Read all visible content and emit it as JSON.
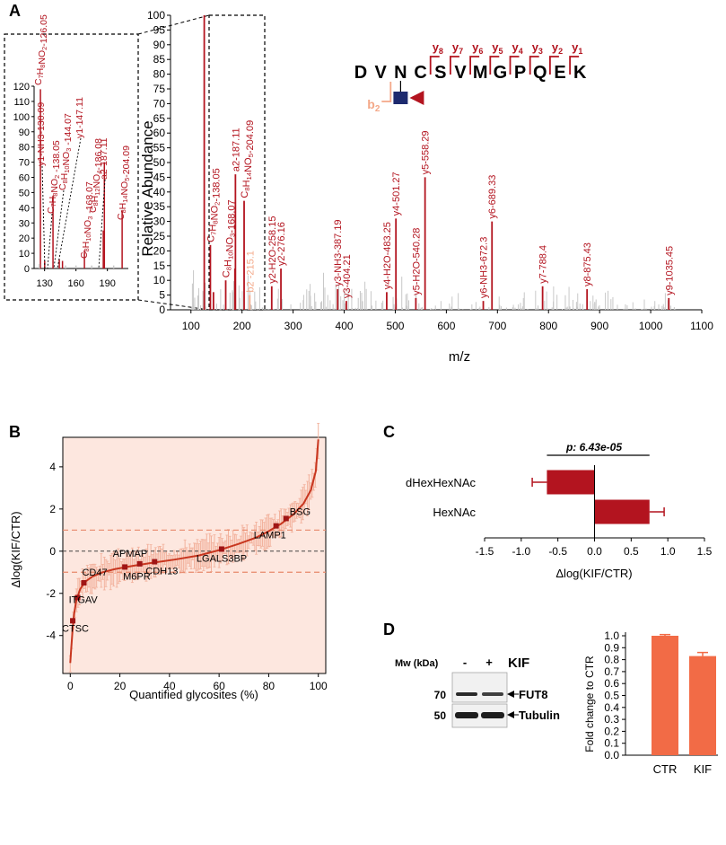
{
  "panels": {
    "A": "A",
    "B": "B",
    "C": "C",
    "D": "D"
  },
  "colors": {
    "red": "#b3141f",
    "gray": "#c8c8c8",
    "salmon": "#e8896b",
    "pink_bg": "#fde7df",
    "pink_err": "#f2b19c",
    "orange_bar": "#f26b46",
    "navy": "#1d2a6e",
    "peach": "#f4a888"
  },
  "chart_data": [
    {
      "panel": "A",
      "type": "bar",
      "title": "",
      "xlabel": "m/z",
      "ylabel": "Relative Abundance",
      "xlim": [
        60,
        1100
      ],
      "ylim": [
        0,
        100
      ],
      "xticks": [
        100,
        200,
        300,
        400,
        500,
        600,
        700,
        800,
        900,
        1000,
        1100
      ],
      "yticks": [
        0,
        5,
        10,
        15,
        20,
        25,
        30,
        35,
        40,
        45,
        50,
        55,
        60,
        65,
        70,
        75,
        80,
        85,
        90,
        95,
        100
      ],
      "peaks": [
        {
          "mz": 126.05,
          "rel": 100
        },
        {
          "mz": 138.05,
          "rel": 22
        },
        {
          "mz": 144.07,
          "rel": 6
        },
        {
          "mz": 168.07,
          "rel": 10
        },
        {
          "mz": 186.08,
          "rel": 14
        },
        {
          "mz": 187.11,
          "rel": 46
        },
        {
          "mz": 204.09,
          "rel": 37
        },
        {
          "mz": 215.1,
          "rel": 5
        },
        {
          "mz": 258.15,
          "rel": 8
        },
        {
          "mz": 276.16,
          "rel": 14
        },
        {
          "mz": 387.19,
          "rel": 7
        },
        {
          "mz": 404.21,
          "rel": 3
        },
        {
          "mz": 483.25,
          "rel": 6
        },
        {
          "mz": 501.27,
          "rel": 31
        },
        {
          "mz": 540.28,
          "rel": 4
        },
        {
          "mz": 558.29,
          "rel": 45
        },
        {
          "mz": 672.3,
          "rel": 3
        },
        {
          "mz": 689.33,
          "rel": 30
        },
        {
          "mz": 788.4,
          "rel": 8
        },
        {
          "mz": 875.43,
          "rel": 7
        },
        {
          "mz": 1035.45,
          "rel": 4
        }
      ],
      "labels": [
        {
          "text": "y2-H2O-258.15",
          "mz": 258.15,
          "rel": 8
        },
        {
          "text": "y2-276.16",
          "mz": 276.16,
          "rel": 14
        },
        {
          "text": "y3-NH3-387.19",
          "mz": 387.19,
          "rel": 7
        },
        {
          "text": "y3-404.21",
          "mz": 404.21,
          "rel": 3
        },
        {
          "text": "y4-H2O-483.25",
          "mz": 483.25,
          "rel": 6
        },
        {
          "text": "y4-501.27",
          "mz": 501.27,
          "rel": 31
        },
        {
          "text": "y5-H2O-540.28",
          "mz": 540.28,
          "rel": 4
        },
        {
          "text": "y5-558.29",
          "mz": 558.29,
          "rel": 45
        },
        {
          "text": "y6-NH3-672.3",
          "mz": 672.3,
          "rel": 3
        },
        {
          "text": "y6-689.33",
          "mz": 689.33,
          "rel": 30
        },
        {
          "text": "y7-788.4",
          "mz": 788.4,
          "rel": 8
        },
        {
          "text": "y8-875.43",
          "mz": 875.43,
          "rel": 7
        },
        {
          "text": "y9-1035.45",
          "mz": 1035.45,
          "rel": 4
        },
        {
          "text": "a2-187.11",
          "mz": 187.11,
          "rel": 46
        },
        {
          "text": "C8H14NO5-204.09",
          "mz": 204.09,
          "rel": 37
        },
        {
          "text": "C7H8NO2-138.05",
          "mz": 138.05,
          "rel": 22
        },
        {
          "text": "C8H10NO3-168.07",
          "mz": 168.07,
          "rel": 10
        }
      ],
      "b2_label": "b2 -215.1",
      "inset": {
        "xlim": [
          120,
          210
        ],
        "ylim": [
          0,
          120
        ],
        "xticks": [
          130,
          160,
          190
        ],
        "yticks": [
          0,
          10,
          20,
          30,
          40,
          50,
          60,
          70,
          80,
          90,
          100,
          110,
          120
        ],
        "labels": [
          "C7H8NO2-126.05",
          "y1-NH3-130.09",
          "C7H8NO2 -138.05",
          "C8H10NO3 -144.07",
          "y1-147.11",
          "C8H10NO3 -168.07",
          "C8H12NO4-186.08",
          "a2-187.11",
          "C8H14NO5-204.09"
        ]
      },
      "peptide": {
        "residues": [
          "D",
          "V",
          "N",
          "C",
          "S",
          "V",
          "M",
          "G",
          "P",
          "Q",
          "E",
          "K"
        ],
        "y_ions": [
          "y8",
          "y7",
          "y6",
          "y5",
          "y4",
          "y3",
          "y2",
          "y1"
        ],
        "b_ion": "b2"
      }
    },
    {
      "panel": "B",
      "type": "scatter",
      "xlabel": "Quantified glycosites (%)",
      "ylabel": "Δlog(KIF/CTR)",
      "xlim": [
        -3,
        103
      ],
      "ylim": [
        -5.8,
        5.4
      ],
      "xticks": [
        0,
        20,
        40,
        60,
        80,
        100
      ],
      "yticks": [
        -4,
        -2,
        0,
        2,
        4
      ],
      "thresholds": [
        1,
        -1
      ],
      "curve": [
        [
          0,
          -5.3
        ],
        [
          0.4,
          -4.6
        ],
        [
          0.9,
          -3.8
        ],
        [
          1.5,
          -3.0
        ],
        [
          2.5,
          -2.3
        ],
        [
          4,
          -1.8
        ],
        [
          6,
          -1.45
        ],
        [
          9,
          -1.2
        ],
        [
          13,
          -1.0
        ],
        [
          18,
          -0.85
        ],
        [
          25,
          -0.7
        ],
        [
          33,
          -0.55
        ],
        [
          42,
          -0.4
        ],
        [
          52,
          -0.2
        ],
        [
          60,
          0.05
        ],
        [
          68,
          0.35
        ],
        [
          75,
          0.65
        ],
        [
          80,
          0.95
        ],
        [
          85,
          1.3
        ],
        [
          90,
          1.75
        ],
        [
          94,
          2.25
        ],
        [
          97,
          2.9
        ],
        [
          99,
          3.8
        ],
        [
          100,
          5.3
        ]
      ],
      "highlighted": [
        {
          "name": "CTSC",
          "x": 1,
          "y": -3.3
        },
        {
          "name": "ITGAV",
          "x": 3,
          "y": -2.2
        },
        {
          "name": "CD47",
          "x": 5.5,
          "y": -1.5
        },
        {
          "name": "M6PR",
          "x": 22,
          "y": -0.75
        },
        {
          "name": "APMAP",
          "x": 28,
          "y": -0.6
        },
        {
          "name": "CDH13",
          "x": 34,
          "y": -0.5
        },
        {
          "name": "LGALS3BP",
          "x": 61,
          "y": 0.1
        },
        {
          "name": "LAMP1",
          "x": 83,
          "y": 1.2
        },
        {
          "name": "BSG",
          "x": 87,
          "y": 1.55
        }
      ]
    },
    {
      "panel": "C",
      "type": "bar",
      "orientation": "horizontal",
      "categories": [
        "dHexHexNAc",
        "HexNAc"
      ],
      "values": [
        -0.65,
        0.75
      ],
      "errors": [
        0.2,
        0.2
      ],
      "xlabel": "Δlog(KIF/CTR)",
      "xlim": [
        -1.5,
        1.5
      ],
      "xticks": [
        "-1.5",
        "-1.0",
        "-0.5",
        "0.0",
        "0.5",
        "1.0",
        "1.5"
      ],
      "p_value": "p: 6.43e-05"
    },
    {
      "panel": "D",
      "type": "bar",
      "categories": [
        "CTR",
        "KIF"
      ],
      "values": [
        1.0,
        0.83
      ],
      "errors": [
        0.01,
        0.03
      ],
      "ylabel": "Fold change to CTR",
      "ylim": [
        0,
        1.0
      ],
      "yticks": [
        "0.0",
        "0.1",
        "0.2",
        "0.3",
        "0.4",
        "0.5",
        "0.6",
        "0.7",
        "0.8",
        "0.9",
        "1.0"
      ]
    }
  ],
  "western": {
    "mw_label": "Mw (kDa)",
    "lane_signs": [
      "-",
      "+"
    ],
    "treatment": "KIF",
    "markers": [
      "70",
      "50"
    ],
    "bands": [
      "FUT8",
      "Tubulin"
    ]
  }
}
